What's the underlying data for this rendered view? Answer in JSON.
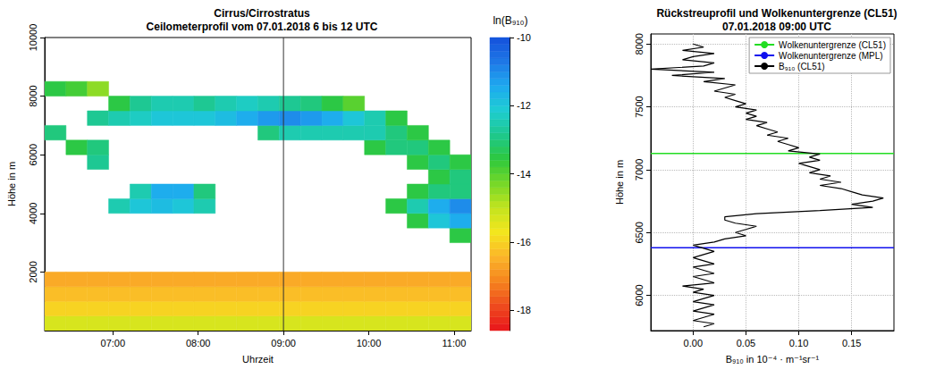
{
  "chart_data": [
    {
      "type": "heatmap",
      "title": "Cirrus/Cirrostratus",
      "subtitle": "Ceilometerprofil vom 07.01.2018 6 bis 12 UTC",
      "x_label": "Uhrzeit",
      "y_label": "Höhe in m",
      "x": [
        6.325,
        6.575,
        6.825,
        7.075,
        7.325,
        7.575,
        7.825,
        8.075,
        8.325,
        8.575,
        8.825,
        9.075,
        9.325,
        9.575,
        9.825,
        10.075,
        10.325,
        10.575,
        10.825,
        11.075
      ],
      "y": [
        250,
        750,
        1250,
        1750,
        2250,
        2750,
        3250,
        3750,
        4250,
        4750,
        5250,
        5750,
        6250,
        6750,
        7250,
        7750,
        8250,
        8750,
        9250,
        9750
      ],
      "cells": [
        [
          -15.3,
          -15.3,
          -15.3,
          -15.3,
          -15.3,
          -15.3,
          -15.3,
          -15.3,
          -15.3,
          -15.3,
          -15.3,
          -15.3,
          -15.3,
          -15.3,
          -15.3,
          -15.3,
          -15.3,
          -15.3,
          -15.3,
          -15.3
        ],
        [
          -16,
          -16,
          -16,
          -16,
          -16,
          -16,
          -16,
          -16,
          -16,
          -16,
          -16,
          -16,
          -16,
          -16,
          -16,
          -16,
          -16,
          -16,
          -16,
          -16
        ],
        [
          -16.3,
          -16.3,
          -16.3,
          -16.3,
          -16.3,
          -16.3,
          -16.3,
          -16.3,
          -16.3,
          -16.3,
          -16.3,
          -16.3,
          -16.3,
          -16.3,
          -16.3,
          -16.3,
          -16.3,
          -16.3,
          -16.3,
          -16.3
        ],
        [
          -16.6,
          -16.6,
          -16.6,
          -16.6,
          -16.6,
          -16.6,
          -16.6,
          -16.6,
          -16.6,
          -16.6,
          -16.6,
          -16.6,
          -16.6,
          -16.6,
          -16.6,
          -16.6,
          -16.6,
          -16.6,
          -16.6,
          -16.6
        ],
        [
          null,
          null,
          null,
          null,
          null,
          null,
          null,
          null,
          null,
          null,
          null,
          null,
          null,
          null,
          null,
          null,
          null,
          null,
          null,
          null
        ],
        [
          null,
          null,
          null,
          null,
          null,
          null,
          null,
          null,
          null,
          null,
          null,
          null,
          null,
          null,
          null,
          null,
          null,
          null,
          null,
          null
        ],
        [
          null,
          null,
          null,
          null,
          null,
          null,
          null,
          null,
          null,
          null,
          null,
          null,
          null,
          null,
          null,
          null,
          null,
          null,
          null,
          -13.5
        ],
        [
          null,
          null,
          null,
          null,
          null,
          null,
          null,
          null,
          null,
          null,
          null,
          null,
          null,
          null,
          null,
          null,
          null,
          -13.5,
          -12,
          -11.5
        ],
        [
          null,
          null,
          null,
          -12.5,
          -12,
          -11.8,
          -12,
          -12.5,
          null,
          null,
          null,
          null,
          null,
          null,
          null,
          null,
          -13.5,
          -12.5,
          -11.5,
          -11
        ],
        [
          null,
          null,
          null,
          null,
          -12.5,
          -11.5,
          -11.5,
          -13,
          null,
          null,
          null,
          null,
          null,
          null,
          null,
          null,
          null,
          -13.5,
          -13,
          -13
        ],
        [
          null,
          null,
          null,
          null,
          null,
          null,
          null,
          null,
          null,
          null,
          null,
          null,
          null,
          null,
          null,
          null,
          null,
          null,
          -13.5,
          -13
        ],
        [
          null,
          null,
          -12.8,
          null,
          null,
          null,
          null,
          null,
          null,
          null,
          null,
          null,
          null,
          null,
          null,
          null,
          null,
          -13.5,
          -13,
          -13.5
        ],
        [
          null,
          -13.5,
          -13,
          null,
          null,
          null,
          null,
          null,
          null,
          null,
          null,
          null,
          null,
          null,
          null,
          -13.5,
          -13,
          -13,
          -13.5,
          null
        ],
        [
          -13,
          null,
          null,
          null,
          null,
          null,
          null,
          null,
          null,
          null,
          -13,
          -12.5,
          -12.5,
          -12.5,
          -12.5,
          -12.5,
          -13,
          -13.5,
          null,
          null
        ],
        [
          null,
          null,
          -12.8,
          -12.5,
          -12.3,
          -12,
          -12,
          -12,
          -11.8,
          -11.5,
          -11.2,
          -11,
          -11.2,
          -11.5,
          -12,
          -12.5,
          -13.5,
          null,
          null,
          null
        ],
        [
          null,
          null,
          null,
          -13.5,
          -12.8,
          -12.5,
          -12.5,
          -12.8,
          -12.5,
          -12.3,
          -12.5,
          -12.8,
          -13,
          -13.5,
          -14,
          null,
          null,
          null,
          null,
          null
        ],
        [
          -13.5,
          -13.8,
          -14.5,
          null,
          null,
          null,
          null,
          null,
          null,
          null,
          null,
          null,
          null,
          null,
          null,
          null,
          null,
          null,
          null,
          null
        ],
        [
          null,
          null,
          null,
          null,
          null,
          null,
          null,
          null,
          null,
          null,
          null,
          null,
          null,
          null,
          null,
          null,
          null,
          null,
          null,
          null
        ],
        [
          null,
          null,
          null,
          null,
          null,
          null,
          null,
          null,
          null,
          null,
          null,
          null,
          null,
          null,
          null,
          null,
          null,
          null,
          null,
          null
        ],
        [
          null,
          null,
          null,
          null,
          null,
          null,
          null,
          null,
          null,
          null,
          null,
          null,
          null,
          null,
          null,
          null,
          null,
          null,
          null,
          null
        ]
      ],
      "xlim": [
        6.2,
        11.2
      ],
      "xticks": [
        {
          "value": 7,
          "label": "07:00"
        },
        {
          "value": 8,
          "label": "08:00"
        },
        {
          "value": 9,
          "label": "09:00"
        },
        {
          "value": 10,
          "label": "10:00"
        },
        {
          "value": 11,
          "label": "11:00"
        }
      ],
      "ylim": [
        0,
        10000
      ],
      "yticks": [
        2000,
        4000,
        6000,
        8000,
        10000
      ],
      "vline": 9,
      "colorbar": {
        "title": "ln(B₉₁₀)",
        "range": [
          -18.6,
          -10
        ],
        "ticks": [
          -10,
          -12,
          -14,
          -16,
          -18
        ],
        "colors": [
          "#e8141c",
          "#ee4a1e",
          "#f5841e",
          "#fbb42a",
          "#f5e61e",
          "#c4e41e",
          "#78d828",
          "#2ec83c",
          "#1ec88c",
          "#1ecdd2",
          "#1eaaf0",
          "#1e78e6",
          "#1450dc"
        ]
      },
      "grid": false
    },
    {
      "type": "line",
      "title": "Rückstreuprofil und Wolkenuntergrenze (CL51)",
      "subtitle": "07.01.2018 09:00 UTC",
      "x_label": "B₉₁₀ in 10⁻⁴ · m⁻¹sr⁻¹",
      "y_label": "Höhe in m",
      "series": [
        {
          "name": "B₉₁₀ (CL51)",
          "color": "#000000",
          "x": [
            0.01,
            0.02,
            0.0,
            0.01,
            0.02,
            0.0,
            0.01,
            0.02,
            0.0,
            0.01,
            0.02,
            0.0,
            0.01,
            -0.01,
            0.02,
            0.01,
            0.0,
            0.02,
            0.01,
            0.0,
            0.02,
            0.01,
            0.0,
            0.01,
            0.02,
            0.01,
            0.0,
            0.02,
            0.03,
            0.05,
            0.04,
            0.05,
            0.06,
            0.04,
            0.03,
            0.03,
            0.06,
            0.12,
            0.17,
            0.15,
            0.17,
            0.18,
            0.16,
            0.15,
            0.14,
            0.12,
            0.14,
            0.12,
            0.13,
            0.11,
            0.12,
            0.11,
            0.1,
            0.12,
            0.11,
            0.12,
            0.09,
            0.1,
            0.09,
            0.08,
            0.09,
            0.07,
            0.08,
            0.07,
            0.06,
            0.07,
            0.05,
            0.06,
            0.05,
            0.06,
            0.04,
            0.05,
            0.04,
            0.03,
            0.04,
            0.02,
            0.03,
            0.04,
            0.01,
            0.03,
            -0.02,
            0.02,
            -0.04,
            0.01,
            0.02,
            -0.01,
            0.0,
            0.02,
            -0.01,
            0.01,
            0.0
          ],
          "y": [
            5750,
            5775,
            5800,
            5825,
            5850,
            5875,
            5900,
            5925,
            5950,
            5975,
            6000,
            6025,
            6050,
            6075,
            6100,
            6125,
            6150,
            6175,
            6200,
            6225,
            6250,
            6275,
            6300,
            6325,
            6350,
            6375,
            6400,
            6425,
            6450,
            6475,
            6500,
            6525,
            6550,
            6575,
            6600,
            6625,
            6650,
            6675,
            6700,
            6725,
            6750,
            6775,
            6800,
            6825,
            6850,
            6875,
            6900,
            6925,
            6950,
            6975,
            7000,
            7025,
            7050,
            7075,
            7100,
            7125,
            7150,
            7175,
            7200,
            7225,
            7250,
            7275,
            7300,
            7325,
            7350,
            7375,
            7400,
            7425,
            7450,
            7475,
            7500,
            7525,
            7550,
            7575,
            7600,
            7625,
            7650,
            7675,
            7700,
            7725,
            7750,
            7775,
            7800,
            7825,
            7850,
            7875,
            7900,
            7925,
            7950,
            7975,
            8000
          ]
        }
      ],
      "hlines": [
        {
          "name": "Wolkenuntergrenze (CL51)",
          "color": "#22dd22",
          "value": 7130
        },
        {
          "name": "Wolkenuntergrenze (MPL)",
          "color": "#1010ee",
          "value": 6380
        }
      ],
      "xlim": [
        -0.04,
        0.19
      ],
      "xticks": [
        {
          "value": 0,
          "label": "0.00"
        },
        0.05,
        {
          "value": 0.1,
          "label": "0.10"
        },
        0.15
      ],
      "ylim": [
        5720,
        8080
      ],
      "yticks": [
        6000,
        6500,
        7000,
        7500,
        8000
      ],
      "grid": true,
      "legend": "top-right"
    }
  ]
}
